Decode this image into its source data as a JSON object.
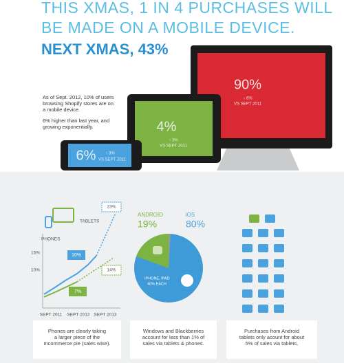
{
  "header": {
    "lines": [
      "THIS XMAS, 1 IN 4 PURCHASES WILL",
      "BE MADE ON A MOBILE DEVICE."
    ],
    "highlight": "NEXT XMAS, 43%"
  },
  "intro": {
    "lines": [
      "As of Sept. 2012, 10% of users",
      "browsing Shopify stores are on",
      "a mobile device."
    ],
    "note": [
      "6% higher than last year, and",
      "growing exponentially."
    ]
  },
  "devices": {
    "desktop": {
      "share": "90%",
      "change": "↓ 6%",
      "compare": "VS SEPT 2011"
    },
    "tablet": {
      "share": "4%",
      "change": "↑ 3%",
      "compare": "VS SEPT 2011"
    },
    "phone": {
      "share": "6%",
      "change": "↑ 3%",
      "compare": "VS SEPT 2011"
    }
  },
  "growth": {
    "labels": {
      "tablets": "TABLETS",
      "phones": "PHONES"
    },
    "callouts": [
      "23%",
      "10%",
      "14%",
      "7%"
    ],
    "yticks": [
      "15%",
      "10%"
    ],
    "xticks": [
      "SEPT 2011",
      "SEPT 2012",
      "SEPT 2013"
    ]
  },
  "platforms": {
    "android": {
      "name": "ANDROID",
      "share": "19%"
    },
    "ios": {
      "name": "iOS",
      "share": "80%"
    },
    "ios_note": [
      "IPHONE, IPAD",
      "40% EACH"
    ]
  },
  "captions": [
    [
      "Phones are clearly taking",
      "a larger piece of the",
      "mcommerce pie (sales wise)."
    ],
    [
      "Windows and Blackberries",
      "account for less than 1% of",
      "sales via tablets & phones."
    ],
    [
      "Purchases from Android",
      "tablets only acount for about",
      "5% of sales via tablets."
    ]
  ]
}
